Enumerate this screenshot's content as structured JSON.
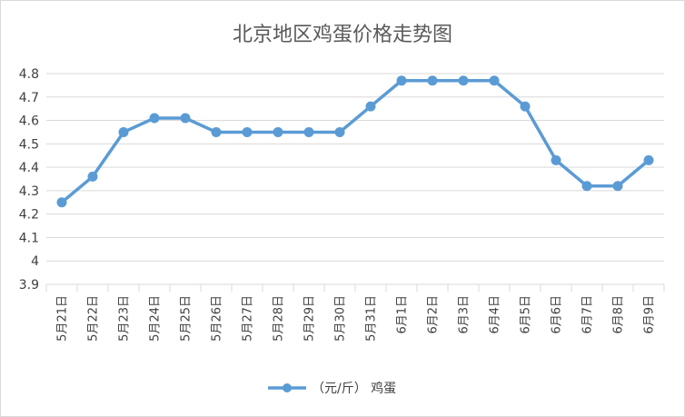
{
  "chart_data": {
    "type": "line",
    "title": "北京地区鸡蛋价格走势图",
    "categories": [
      "5月21日",
      "5月22日",
      "5月23日",
      "5月24日",
      "5月25日",
      "5月26日",
      "5月27日",
      "5月28日",
      "5月29日",
      "5月30日",
      "5月31日",
      "6月1日",
      "6月2日",
      "6月3日",
      "6月4日",
      "6月5日",
      "6月6日",
      "6月7日",
      "6月8日",
      "6月9日"
    ],
    "series": [
      {
        "name": "（元/斤） 鸡蛋",
        "values": [
          4.25,
          4.36,
          4.55,
          4.61,
          4.61,
          4.55,
          4.55,
          4.55,
          4.55,
          4.55,
          4.66,
          4.77,
          4.77,
          4.77,
          4.77,
          4.66,
          4.43,
          4.32,
          4.32,
          4.43
        ]
      }
    ],
    "ylim": [
      3.9,
      4.8
    ],
    "yticks": [
      "3.9",
      "4",
      "4.1",
      "4.2",
      "4.3",
      "4.4",
      "4.5",
      "4.6",
      "4.7",
      "4.8"
    ],
    "grid": true,
    "legend": "bottom",
    "line_color": "#5b9bd5"
  }
}
